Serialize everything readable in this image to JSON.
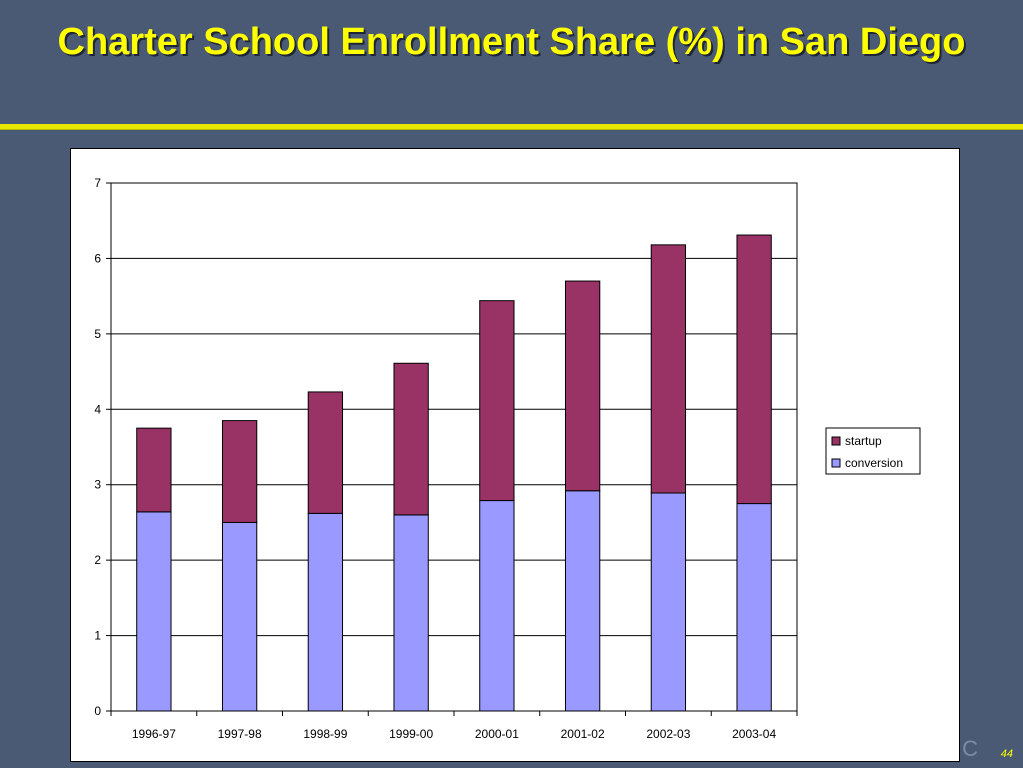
{
  "slide": {
    "title": "Charter School Enrollment Share (%) in San Diego",
    "page_number": "44",
    "corner_mark": "C"
  },
  "colors": {
    "background": "#4a5a75",
    "title": "#ffff00",
    "rule": "#e6e600",
    "startup": "#993366",
    "conversion": "#9999ff"
  },
  "chart_data": {
    "type": "bar",
    "stacked": true,
    "title": "",
    "xlabel": "",
    "ylabel": "",
    "ylim": [
      0,
      7
    ],
    "yticks": [
      0,
      1,
      2,
      3,
      4,
      5,
      6,
      7
    ],
    "grid": true,
    "legend_position": "right",
    "categories": [
      "1996-97",
      "1997-98",
      "1998-99",
      "1999-00",
      "2000-01",
      "2001-02",
      "2002-03",
      "2003-04"
    ],
    "series": [
      {
        "name": "conversion",
        "color": "#9999ff",
        "values": [
          2.64,
          2.5,
          2.62,
          2.6,
          2.79,
          2.92,
          2.89,
          2.75
        ]
      },
      {
        "name": "startup",
        "color": "#993366",
        "values": [
          1.11,
          1.35,
          1.61,
          2.01,
          2.65,
          2.78,
          3.29,
          3.56
        ]
      }
    ],
    "legend": [
      "startup",
      "conversion"
    ]
  }
}
